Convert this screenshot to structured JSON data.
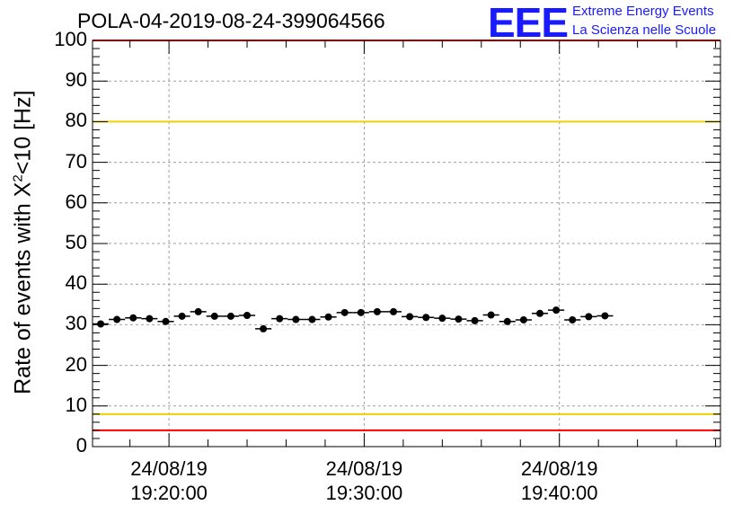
{
  "header": {
    "title": "POLA-04-2019-08-24-399064566",
    "logo_letters": "EEE",
    "logo_line1": "Extreme Energy Events",
    "logo_line2": "La Scienza nelle Scuole"
  },
  "axis": {
    "ylabel_main": "Rate of events with X",
    "ylabel_sup": "2",
    "ylabel_tail": "<10 [Hz]"
  },
  "colors": {
    "points": "#000000",
    "red_line": "#ff0000",
    "yellow_line": "#f0d000",
    "grid": "#a0a0a0",
    "logo": "#1a1aff"
  },
  "chart_data": {
    "type": "scatter",
    "title": "POLA-04-2019-08-24-399064566",
    "ylabel": "Rate of events with X²<10 [Hz]",
    "ylim": [
      0,
      100
    ],
    "yticks": [
      0,
      10,
      20,
      30,
      40,
      50,
      60,
      70,
      80,
      90,
      100
    ],
    "xlim": [
      "19:16:05",
      "19:48:15"
    ],
    "xticks": [
      {
        "t": "19:20:00",
        "date": "24/08/19",
        "time": "19:20:00"
      },
      {
        "t": "19:30:00",
        "date": "24/08/19",
        "time": "19:30:00"
      },
      {
        "t": "19:40:00",
        "date": "24/08/19",
        "time": "19:40:00"
      }
    ],
    "grid": true,
    "bin_width_seconds": 50,
    "reference_lines": [
      {
        "y": 100,
        "color": "red"
      },
      {
        "y": 80,
        "color": "yellow"
      },
      {
        "y": 8,
        "color": "yellow"
      },
      {
        "y": 4,
        "color": "red"
      }
    ],
    "points": [
      {
        "t": "19:16:30",
        "y": 30.2
      },
      {
        "t": "19:17:20",
        "y": 31.3
      },
      {
        "t": "19:18:10",
        "y": 31.7
      },
      {
        "t": "19:19:00",
        "y": 31.5
      },
      {
        "t": "19:19:50",
        "y": 30.8
      },
      {
        "t": "19:20:40",
        "y": 32.1
      },
      {
        "t": "19:21:30",
        "y": 33.2
      },
      {
        "t": "19:22:20",
        "y": 32.1
      },
      {
        "t": "19:23:10",
        "y": 32.1
      },
      {
        "t": "19:24:00",
        "y": 32.3
      },
      {
        "t": "19:24:50",
        "y": 29.0
      },
      {
        "t": "19:25:40",
        "y": 31.5
      },
      {
        "t": "19:26:30",
        "y": 31.3
      },
      {
        "t": "19:27:20",
        "y": 31.3
      },
      {
        "t": "19:28:10",
        "y": 31.9
      },
      {
        "t": "19:29:00",
        "y": 33.0
      },
      {
        "t": "19:29:50",
        "y": 33.0
      },
      {
        "t": "19:30:40",
        "y": 33.2
      },
      {
        "t": "19:31:30",
        "y": 33.2
      },
      {
        "t": "19:32:20",
        "y": 32.0
      },
      {
        "t": "19:33:10",
        "y": 31.8
      },
      {
        "t": "19:34:00",
        "y": 31.6
      },
      {
        "t": "19:34:50",
        "y": 31.4
      },
      {
        "t": "19:35:40",
        "y": 31.0
      },
      {
        "t": "19:36:30",
        "y": 32.4
      },
      {
        "t": "19:37:20",
        "y": 30.8
      },
      {
        "t": "19:38:10",
        "y": 31.2
      },
      {
        "t": "19:39:00",
        "y": 32.8
      },
      {
        "t": "19:39:50",
        "y": 33.6
      },
      {
        "t": "19:40:40",
        "y": 31.2
      },
      {
        "t": "19:41:30",
        "y": 32.0
      },
      {
        "t": "19:42:20",
        "y": 32.2
      }
    ]
  }
}
